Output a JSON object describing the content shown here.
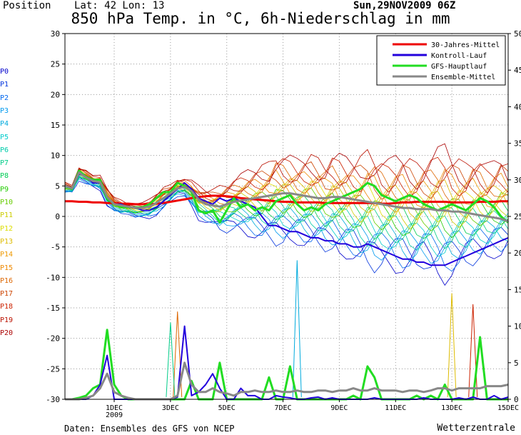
{
  "header": {
    "position_label": "Position",
    "lat_label": "Lat: 42 Lon: 13",
    "date_label": "Sun,29NOV2009 06Z"
  },
  "footer": {
    "source": "Daten: Ensembles des GFS von NCEP",
    "brand": "Wetterzentrale"
  },
  "members": [
    {
      "label": "P0",
      "color": "#0000cc"
    },
    {
      "label": "P1",
      "color": "#0033dd"
    },
    {
      "label": "P2",
      "color": "#0066ee"
    },
    {
      "label": "P3",
      "color": "#0099ee"
    },
    {
      "label": "P4",
      "color": "#00aadd"
    },
    {
      "label": "P5",
      "color": "#00cccc"
    },
    {
      "label": "P6",
      "color": "#00ccaa"
    },
    {
      "label": "P7",
      "color": "#00cc88"
    },
    {
      "label": "P8",
      "color": "#00cc55"
    },
    {
      "label": "P9",
      "color": "#22cc00"
    },
    {
      "label": "P10",
      "color": "#66cc00"
    },
    {
      "label": "P11",
      "color": "#cccc00"
    },
    {
      "label": "P12",
      "color": "#dddd00"
    },
    {
      "label": "P13",
      "color": "#ddbb00"
    },
    {
      "label": "P14",
      "color": "#ee9900"
    },
    {
      "label": "P15",
      "color": "#ee8800"
    },
    {
      "label": "P16",
      "color": "#dd6600"
    },
    {
      "label": "P17",
      "color": "#cc4400"
    },
    {
      "label": "P18",
      "color": "#cc2200"
    },
    {
      "label": "P19",
      "color": "#bb1100"
    },
    {
      "label": "P20",
      "color": "#aa0000"
    }
  ],
  "chart_data": {
    "type": "line",
    "title": "850 hPa Temp. in °C, 6h-Niederschlag in mm",
    "x_step_hours": 6,
    "x_start_hour": 0,
    "x_ticks": [
      {
        "label": "1DEC",
        "sub": "2009",
        "hour": 42
      },
      {
        "label": "3DEC",
        "sub": "",
        "hour": 90
      },
      {
        "label": "5DEC",
        "sub": "",
        "hour": 138
      },
      {
        "label": "7DEC",
        "sub": "",
        "hour": 186
      },
      {
        "label": "9DEC",
        "sub": "",
        "hour": 234
      },
      {
        "label": "11DEC",
        "sub": "",
        "hour": 282
      },
      {
        "label": "13DEC",
        "sub": "",
        "hour": 330
      },
      {
        "label": "15DEC",
        "sub": "",
        "hour": 378
      }
    ],
    "xlim": [
      0,
      378
    ],
    "y_left": {
      "min": -30,
      "max": 30,
      "ticks": [
        -30,
        -25,
        -20,
        -15,
        -10,
        -5,
        0,
        5,
        10,
        15,
        20,
        25,
        30
      ],
      "unit": "°C"
    },
    "y_right": {
      "min": 0,
      "max": 50,
      "ticks": [
        0,
        5,
        10,
        15,
        20,
        25,
        30,
        35,
        40,
        45,
        50
      ],
      "unit": "mm"
    },
    "grid": true,
    "legend_position": "top-right",
    "legend": [
      {
        "label": "30-Jahres-Mittel",
        "color": "#ee0000"
      },
      {
        "label": "Kontroll-Lauf",
        "color": "#2200dd"
      },
      {
        "label": "GFS-Hauptlauf",
        "color": "#22dd22"
      },
      {
        "label": "Ensemble-Mittel",
        "color": "#888888"
      }
    ],
    "temperature_series": [
      {
        "name": "30-Jahres-Mittel",
        "color": "#ee0000",
        "width": 3,
        "values": [
          2.5,
          2.5,
          2.4,
          2.4,
          2.3,
          2.3,
          2.2,
          2.2,
          2.1,
          2.1,
          2.0,
          2.0,
          2.0,
          2.1,
          2.2,
          2.4,
          2.6,
          2.8,
          3.0,
          3.2,
          3.3,
          3.4,
          3.4,
          3.3,
          3.2,
          3.0,
          2.9,
          2.8,
          2.7,
          2.6,
          2.5,
          2.4,
          2.4,
          2.3,
          2.3,
          2.3,
          2.3,
          2.2,
          2.2,
          2.2,
          2.2,
          2.2,
          2.2,
          2.2,
          2.2,
          2.1,
          2.1,
          2.2,
          2.3,
          2.3,
          2.4,
          2.4,
          2.4,
          2.4,
          2.4,
          2.3,
          2.3,
          2.3,
          2.3,
          2.4,
          2.4,
          2.4,
          2.5,
          2.5
        ]
      },
      {
        "name": "Kontroll-Lauf",
        "color": "#2200dd",
        "width": 2,
        "values": [
          5.0,
          4.5,
          7.0,
          6.5,
          5.5,
          5.5,
          3.0,
          2.0,
          2.0,
          1.5,
          1.5,
          1.0,
          1.0,
          1.5,
          2.5,
          3.5,
          4.5,
          5.5,
          4.5,
          3.0,
          2.5,
          2.0,
          3.0,
          2.5,
          3.0,
          2.5,
          2.0,
          1.5,
          0.0,
          -1.5,
          -1.5,
          -2.0,
          -2.5,
          -2.5,
          -3.0,
          -3.5,
          -3.5,
          -4.0,
          -4.0,
          -4.5,
          -4.5,
          -5.0,
          -5.0,
          -4.5,
          -5.0,
          -5.5,
          -6.0,
          -6.5,
          -7.0,
          -7.0,
          -7.5,
          -7.5,
          -8.0,
          -8.0,
          -8.0,
          -7.5,
          -7.0,
          -6.5,
          -6.0,
          -5.5,
          -5.0,
          -4.5,
          -4.0,
          -3.5
        ]
      },
      {
        "name": "GFS-Hauptlauf",
        "color": "#22dd22",
        "width": 3,
        "values": [
          5.0,
          4.5,
          7.5,
          6.5,
          6.0,
          6.0,
          3.0,
          2.0,
          1.5,
          1.5,
          1.5,
          1.5,
          2.0,
          3.0,
          4.0,
          4.0,
          5.5,
          5.0,
          4.0,
          1.0,
          0.5,
          1.0,
          -1.0,
          1.0,
          3.0,
          1.5,
          2.0,
          1.0,
          1.5,
          1.0,
          2.5,
          3.0,
          3.5,
          2.0,
          1.0,
          1.5,
          1.0,
          2.0,
          2.5,
          3.0,
          3.5,
          4.0,
          4.5,
          5.5,
          5.0,
          3.5,
          3.0,
          2.5,
          3.0,
          3.5,
          3.0,
          2.0,
          1.5,
          1.0,
          1.5,
          2.0,
          1.5,
          1.0,
          2.0,
          3.0,
          2.5,
          1.5,
          0.0,
          -1.0
        ]
      },
      {
        "name": "Ensemble-Mittel",
        "color": "#888888",
        "width": 3,
        "values": [
          5.0,
          4.6,
          7.2,
          6.4,
          5.8,
          5.6,
          3.2,
          2.0,
          1.8,
          1.6,
          1.4,
          1.4,
          1.6,
          2.2,
          3.0,
          3.8,
          4.6,
          4.8,
          4.2,
          2.8,
          2.0,
          1.8,
          1.6,
          2.0,
          2.4,
          2.6,
          2.8,
          3.0,
          3.2,
          3.4,
          3.6,
          3.8,
          3.8,
          3.6,
          3.4,
          3.2,
          3.0,
          3.0,
          3.2,
          3.2,
          3.0,
          2.8,
          2.6,
          2.4,
          2.2,
          2.0,
          1.8,
          1.6,
          1.4,
          1.4,
          1.2,
          1.2,
          1.2,
          1.0,
          1.0,
          0.8,
          0.8,
          0.6,
          0.4,
          0.2,
          0.0,
          -0.2,
          -0.4,
          -0.8
        ]
      }
    ],
    "precipitation_series": [
      {
        "name": "GFS-Hauptlauf",
        "color": "#22dd22",
        "width": 3,
        "values": [
          0,
          0,
          0.2,
          0.5,
          1.5,
          2.0,
          9.5,
          2.0,
          0.5,
          0,
          0,
          0,
          0,
          0,
          0,
          0,
          0,
          0,
          2.5,
          0,
          0,
          0,
          5.0,
          0,
          0,
          0,
          0,
          0,
          0,
          3.0,
          0,
          0,
          4.5,
          0,
          0,
          0,
          0,
          0,
          0,
          0,
          0,
          0.5,
          0,
          4.5,
          3.0,
          0,
          0,
          0,
          0,
          0,
          0.5,
          0,
          0.5,
          0,
          2.0,
          0,
          0,
          0,
          0,
          8.5,
          0,
          0,
          0,
          0
        ]
      },
      {
        "name": "Kontroll-Lauf",
        "color": "#2200dd",
        "width": 2,
        "values": [
          0,
          0,
          0,
          0,
          0.5,
          2.0,
          6.0,
          0,
          0,
          0,
          0,
          0,
          0,
          0,
          0,
          0,
          0.3,
          10.0,
          0.5,
          1.0,
          2.0,
          3.5,
          1.5,
          0,
          0,
          1.5,
          0.5,
          0.5,
          0,
          0,
          0.5,
          0.3,
          0.2,
          0,
          0,
          0.2,
          0.3,
          0,
          0.2,
          0,
          0,
          0,
          0,
          0,
          0.2,
          0,
          0,
          0,
          0,
          0,
          0,
          0.2,
          0,
          0,
          0,
          0,
          0.2,
          0,
          0.3,
          0,
          0,
          0.5,
          0,
          0.3
        ]
      },
      {
        "name": "Ensemble-Mittel",
        "color": "#888888",
        "width": 3,
        "values": [
          0,
          0,
          0,
          0.2,
          0.5,
          1.5,
          3.5,
          1.0,
          0.5,
          0.2,
          0,
          0,
          0,
          0,
          0,
          0,
          0.5,
          5.0,
          2.0,
          1.0,
          1.0,
          1.5,
          1.0,
          0.8,
          0.5,
          1.0,
          1.0,
          1.2,
          1.0,
          1.0,
          1.2,
          1.0,
          1.0,
          1.2,
          1.0,
          1.0,
          1.2,
          1.2,
          1.0,
          1.2,
          1.2,
          1.5,
          1.2,
          1.2,
          1.5,
          1.2,
          1.2,
          1.2,
          1.0,
          1.2,
          1.2,
          1.0,
          1.2,
          1.5,
          1.5,
          1.2,
          1.5,
          1.5,
          1.5,
          1.5,
          1.8,
          1.8,
          1.8,
          2.0
        ]
      }
    ],
    "ensemble_spread": {
      "temperature_envelope": {
        "low": [
          4.0,
          4.0,
          6.0,
          5.5,
          5.0,
          4.5,
          2.0,
          1.0,
          0.5,
          0.5,
          0.0,
          0.0,
          0.0,
          0.5,
          1.5,
          2.5,
          3.5,
          3.5,
          2.0,
          0.0,
          -0.5,
          -1.0,
          -2.0,
          -2.0,
          -1.5,
          -1.5,
          -2.0,
          -2.5,
          -3.0,
          -3.0,
          -3.5,
          -3.5,
          -3.0,
          -3.0,
          -3.5,
          -4.0,
          -4.0,
          -4.5,
          -4.5,
          -5.0,
          -5.0,
          -5.5,
          -6.5,
          -7.0,
          -7.5,
          -7.0,
          -6.5,
          -7.0,
          -7.5,
          -8.0,
          -7.5,
          -7.0,
          -7.5,
          -8.0,
          -8.5,
          -8.0,
          -7.5,
          -7.0,
          -6.5,
          -6.0,
          -5.5,
          -5.0,
          -5.0,
          -4.5
        ],
        "high": [
          5.5,
          5.0,
          8.0,
          7.5,
          6.5,
          6.5,
          4.5,
          3.0,
          2.5,
          2.0,
          2.0,
          2.0,
          2.5,
          3.5,
          4.5,
          5.0,
          6.0,
          6.0,
          5.5,
          4.5,
          4.0,
          4.0,
          4.5,
          5.0,
          5.5,
          6.0,
          6.5,
          7.0,
          7.5,
          8.0,
          9.5,
          9.0,
          8.5,
          8.0,
          8.5,
          9.0,
          8.5,
          8.0,
          9.0,
          8.5,
          8.0,
          8.0,
          8.5,
          9.5,
          9.0,
          8.0,
          7.5,
          8.0,
          8.5,
          8.0,
          7.5,
          8.0,
          8.5,
          9.0,
          9.5,
          8.5,
          8.0,
          7.5,
          8.5,
          8.0,
          7.0,
          7.5,
          8.5,
          7.5
        ]
      },
      "precip_peaks": [
        {
          "color": "#00aadd",
          "hour": 198,
          "value": 19.0
        },
        {
          "color": "#dd6600",
          "hour": 96,
          "value": 12.0
        },
        {
          "color": "#ddbb00",
          "hour": 330,
          "value": 14.5
        },
        {
          "color": "#cc2200",
          "hour": 348,
          "value": 13.0
        },
        {
          "color": "#00cc88",
          "hour": 90,
          "value": 10.5
        }
      ]
    }
  }
}
